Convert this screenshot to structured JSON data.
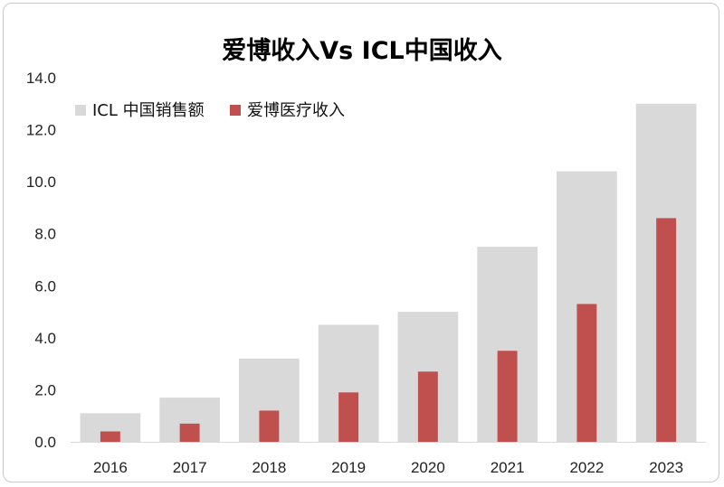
{
  "chart_data": {
    "type": "bar",
    "title": "爱博收入Vs ICL中国收入",
    "xlabel": "",
    "ylabel": "",
    "categories": [
      "2016",
      "2017",
      "2018",
      "2019",
      "2020",
      "2021",
      "2022",
      "2023"
    ],
    "series": [
      {
        "name": "ICL 中国销售额",
        "color": "#d9d9d9",
        "values": [
          1.1,
          1.7,
          3.2,
          4.5,
          5.0,
          7.5,
          10.4,
          13.0
        ]
      },
      {
        "name": "爱博医疗收入",
        "color": "#c0504d",
        "values": [
          0.4,
          0.7,
          1.2,
          1.9,
          2.7,
          3.5,
          5.3,
          8.6
        ]
      }
    ],
    "ylim": [
      0,
      14
    ],
    "yticks": [
      "0.0",
      "2.0",
      "4.0",
      "6.0",
      "8.0",
      "10.0",
      "12.0",
      "14.0"
    ],
    "grid": false,
    "legend": "top-left"
  }
}
